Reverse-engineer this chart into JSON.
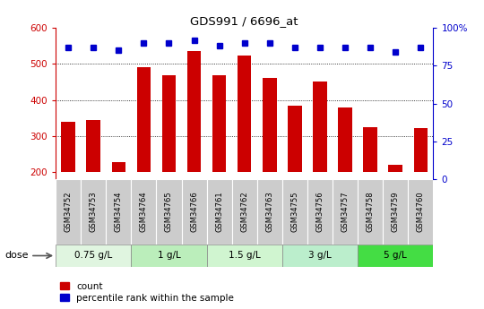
{
  "title": "GDS991 / 6696_at",
  "samples": [
    "GSM34752",
    "GSM34753",
    "GSM34754",
    "GSM34764",
    "GSM34765",
    "GSM34766",
    "GSM34761",
    "GSM34762",
    "GSM34763",
    "GSM34755",
    "GSM34756",
    "GSM34757",
    "GSM34758",
    "GSM34759",
    "GSM34760"
  ],
  "counts": [
    340,
    345,
    228,
    490,
    468,
    535,
    468,
    522,
    460,
    383,
    452,
    378,
    325,
    220,
    322
  ],
  "percentiles": [
    87,
    87,
    85,
    90,
    90,
    92,
    88,
    90,
    90,
    87,
    87,
    87,
    87,
    84,
    87
  ],
  "dose_groups": [
    {
      "label": "0.75 g/L",
      "start": 0,
      "end": 3,
      "color": "#e0f5e0"
    },
    {
      "label": "1 g/L",
      "start": 3,
      "end": 6,
      "color": "#bbeebb"
    },
    {
      "label": "1.5 g/L",
      "start": 6,
      "end": 9,
      "color": "#d0f5d0"
    },
    {
      "label": "3 g/L",
      "start": 9,
      "end": 12,
      "color": "#bbeecc"
    },
    {
      "label": "5 g/L",
      "start": 12,
      "end": 15,
      "color": "#44dd44"
    }
  ],
  "bar_color": "#cc0000",
  "dot_color": "#0000cc",
  "ylim_left": [
    180,
    600
  ],
  "ylim_right": [
    0,
    100
  ],
  "yticks_left": [
    200,
    300,
    400,
    500,
    600
  ],
  "yticks_right": [
    0,
    25,
    50,
    75,
    100
  ],
  "yticklabels_right": [
    "0",
    "25",
    "50",
    "75",
    "100%"
  ],
  "bar_bottom": 200,
  "legend_count_label": "count",
  "legend_pct_label": "percentile rank within the sample",
  "bg_color": "#ffffff",
  "sample_box_color": "#cccccc",
  "grid_color": "#000000",
  "grid_lw": 0.6
}
